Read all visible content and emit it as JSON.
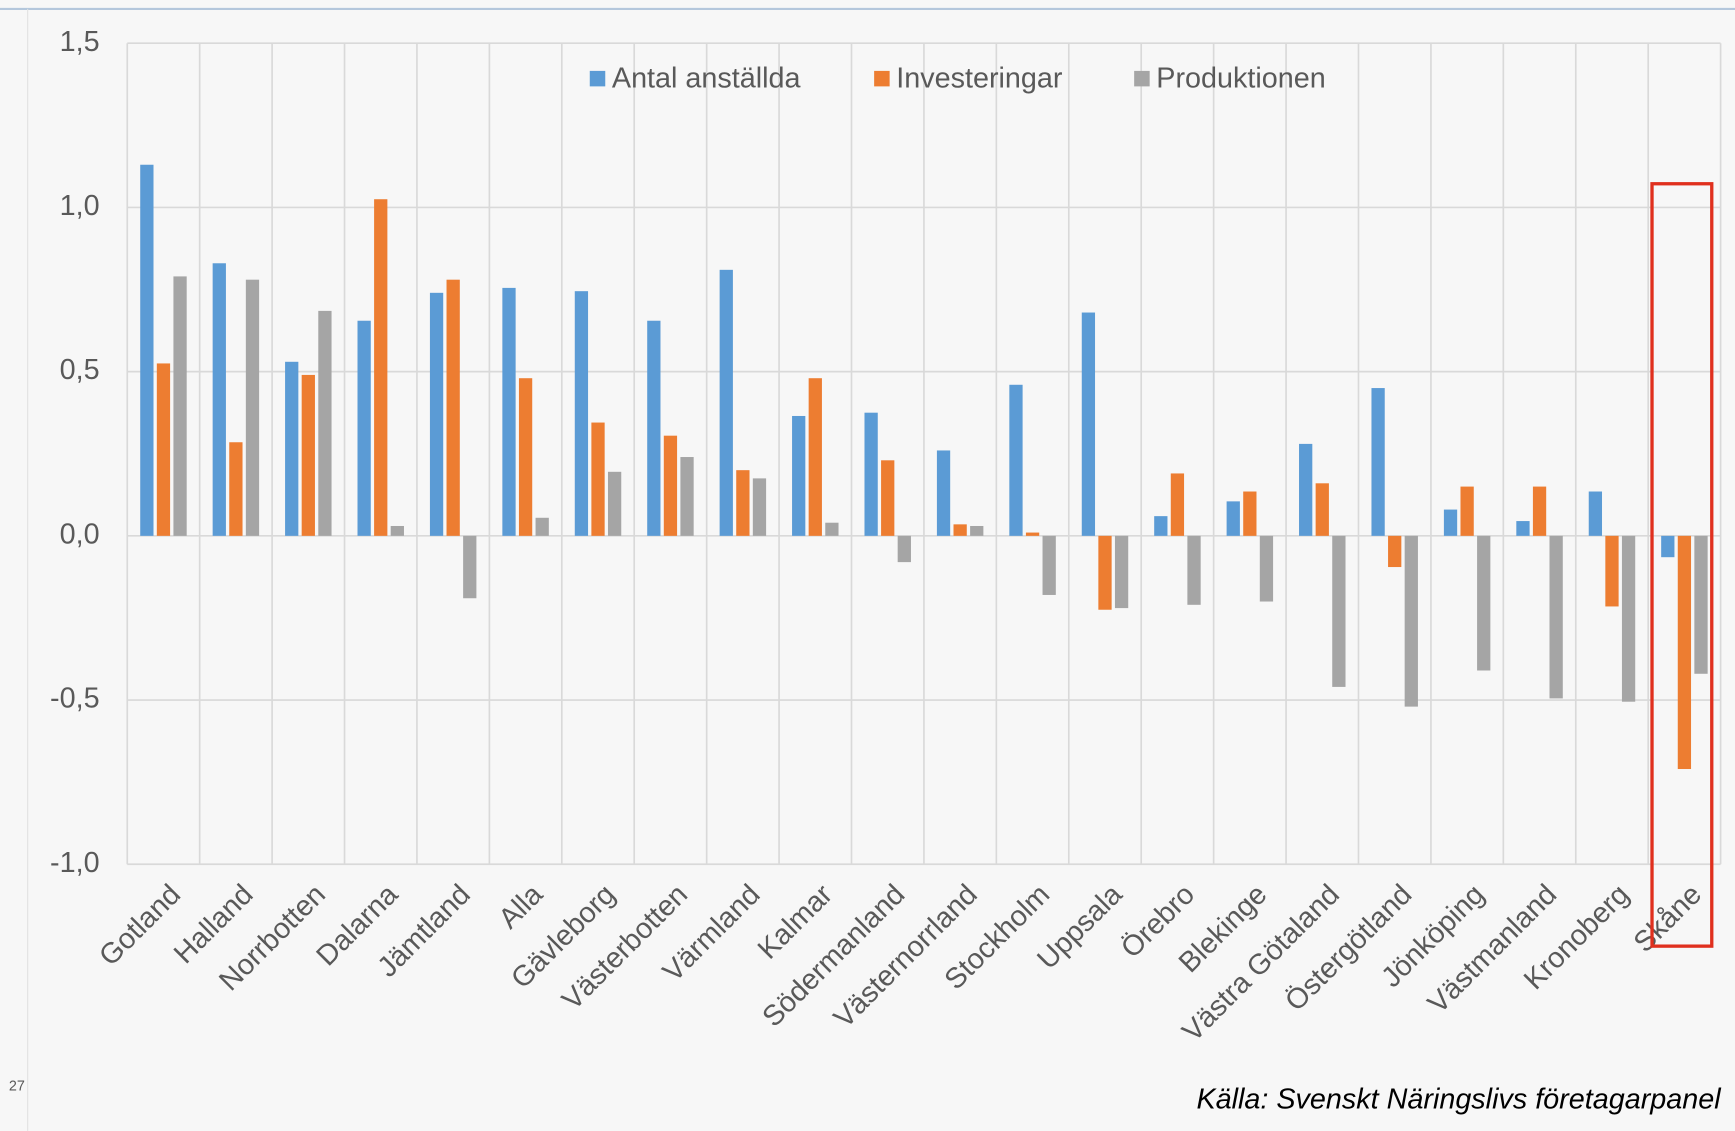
{
  "chart_data": {
    "type": "bar",
    "categories": [
      "Gotland",
      "Halland",
      "Norrbotten",
      "Dalarna",
      "Jämtland",
      "Alla",
      "Gävleborg",
      "Västerbotten",
      "Värmland",
      "Kalmar",
      "Södermanland",
      "Västernorrland",
      "Stockholm",
      "Uppsala",
      "Örebro",
      "Blekinge",
      "Västra Götaland",
      "Östergötland",
      "Jönköping",
      "Västmanland",
      "Kronoberg",
      "Skåne"
    ],
    "series": [
      {
        "name": "Antal anställda",
        "color": "#5b9bd5",
        "values": [
          1.13,
          0.83,
          0.53,
          0.655,
          0.74,
          0.755,
          0.745,
          0.655,
          0.81,
          0.365,
          0.375,
          0.26,
          0.46,
          0.68,
          0.06,
          0.105,
          0.28,
          0.45,
          0.08,
          0.045,
          0.135,
          -0.065
        ]
      },
      {
        "name": "Investeringar",
        "color": "#ed7d31",
        "values": [
          0.525,
          0.285,
          0.49,
          1.025,
          0.78,
          0.48,
          0.345,
          0.305,
          0.2,
          0.48,
          0.23,
          0.035,
          0.01,
          -0.225,
          0.19,
          0.135,
          0.16,
          -0.095,
          0.15,
          0.15,
          -0.215,
          -0.71
        ]
      },
      {
        "name": "Produktionen",
        "color": "#a5a5a5",
        "values": [
          0.79,
          0.78,
          0.685,
          0.03,
          -0.19,
          0.055,
          0.195,
          0.24,
          0.175,
          0.04,
          -0.08,
          0.03,
          -0.18,
          -0.22,
          -0.21,
          -0.2,
          -0.46,
          -0.52,
          -0.41,
          -0.495,
          -0.505,
          -0.42
        ]
      }
    ],
    "ylim": [
      -1.0,
      1.5
    ],
    "yticks": [
      {
        "value": -1.0,
        "label": "-1,0"
      },
      {
        "value": -0.5,
        "label": "-0,5"
      },
      {
        "value": 0,
        "label": "0,0"
      },
      {
        "value": 0.5,
        "label": "0,5"
      },
      {
        "value": 1.0,
        "label": "1,0"
      },
      {
        "value": 1.5,
        "label": "1,5"
      }
    ],
    "grid": true,
    "legend": "top",
    "source": "Källa: Svenskt Näringslivs företagarpanel",
    "page_number": "27"
  }
}
